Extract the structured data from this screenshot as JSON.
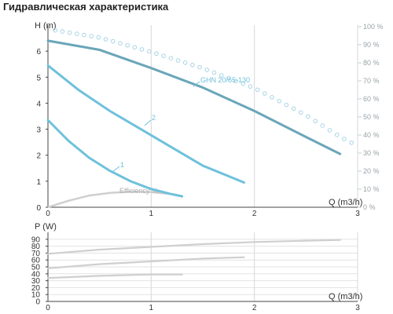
{
  "title": "Гидравлическая характеристика",
  "colors": {
    "curve": "#6ec1dc",
    "top_curve": "#6aa6b9",
    "efficiency": "#cfcfcf",
    "efficiency_dots": "#a9d4e6",
    "power": "#cfcfcf",
    "axis": "#444444",
    "grid": "#d8d8d8"
  },
  "chart_data": [
    {
      "type": "line",
      "title": "Гидравлическая характеристика",
      "xlabel": "Q (m3/h)",
      "ylabel": "H (m)",
      "y2label": "",
      "xlim": [
        0,
        3
      ],
      "ylim": [
        0,
        7
      ],
      "y2lim": [
        0,
        100
      ],
      "x_ticks": [
        "0",
        "1",
        "2",
        "3"
      ],
      "y_ticks": [
        "0",
        "1",
        "2",
        "3",
        "4",
        "5",
        "6"
      ],
      "y2_ticks": [
        "0 %",
        "10 %",
        "20 %",
        "30 %",
        "40 %",
        "50 %",
        "60 %",
        "70 %",
        "80 %",
        "90 %",
        "100 %"
      ],
      "grid": "vertical",
      "series": [
        {
          "name": "1",
          "axis": "left",
          "style": "solid",
          "x": [
            0,
            0.2,
            0.4,
            0.6,
            0.8,
            1.0,
            1.2,
            1.3
          ],
          "y": [
            3.35,
            2.55,
            1.9,
            1.4,
            1.0,
            0.7,
            0.5,
            0.42
          ]
        },
        {
          "name": "2",
          "axis": "left",
          "style": "solid",
          "x": [
            0,
            0.3,
            0.6,
            0.9,
            1.2,
            1.5,
            1.9
          ],
          "y": [
            5.45,
            4.5,
            3.7,
            3.0,
            2.3,
            1.6,
            0.95
          ]
        },
        {
          "name": "GHN 20/65-130",
          "axis": "left",
          "style": "solid",
          "x": [
            0,
            0.5,
            1.0,
            1.5,
            2.0,
            2.5,
            2.83
          ],
          "y": [
            6.4,
            6.05,
            5.35,
            4.6,
            3.7,
            2.7,
            2.05
          ]
        },
        {
          "name": "Efficiency %",
          "axis": "right",
          "style": "solid",
          "x": [
            0,
            0.2,
            0.4,
            0.6,
            0.8,
            1.0,
            1.2,
            1.3
          ],
          "y": [
            0,
            2.5,
            4.5,
            5.5,
            6.0,
            5.8,
            5.0,
            4.3
          ]
        },
        {
          "name": "",
          "axis": "right",
          "style": "dotted",
          "x": [
            0.07,
            0.5,
            1.0,
            1.5,
            2.0,
            2.5,
            2.83,
            3.0
          ],
          "y": [
            98,
            94,
            86,
            77,
            66,
            51,
            39,
            34
          ]
        }
      ]
    },
    {
      "type": "line",
      "xlabel": "Q (m3/h)",
      "ylabel": "P (W)",
      "xlim": [
        0,
        3
      ],
      "ylim": [
        0,
        100
      ],
      "x_ticks": [
        "0",
        "1",
        "2",
        "3"
      ],
      "y_ticks": [
        "0",
        "10",
        "20",
        "30",
        "40",
        "50",
        "60",
        "70",
        "80",
        "90"
      ],
      "grid": "both",
      "series": [
        {
          "x": [
            0,
            0.5,
            1.0,
            1.5,
            2.0,
            2.5,
            2.83
          ],
          "y": [
            69,
            75,
            79,
            83,
            86,
            88,
            89
          ]
        },
        {
          "x": [
            0,
            0.5,
            1.0,
            1.5,
            1.9
          ],
          "y": [
            48,
            54,
            58,
            62,
            64
          ]
        },
        {
          "x": [
            0,
            0.5,
            1.0,
            1.3
          ],
          "y": [
            34,
            37,
            39,
            39
          ]
        }
      ]
    }
  ]
}
